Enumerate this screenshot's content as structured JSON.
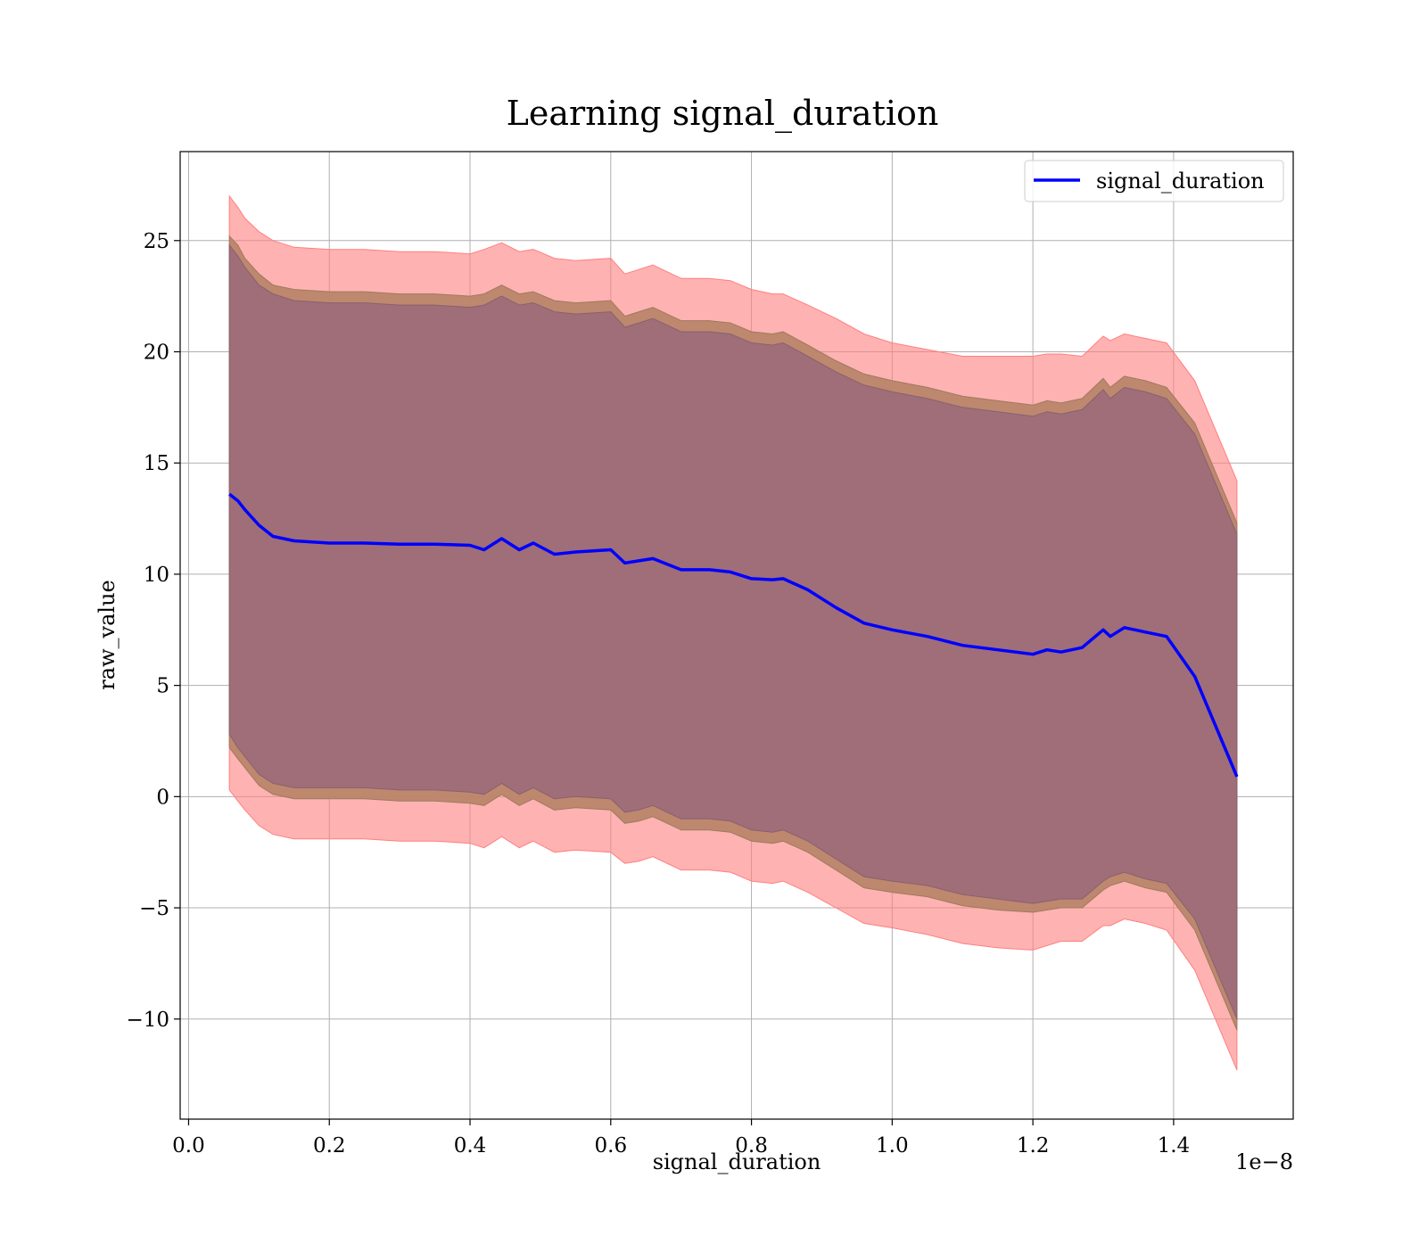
{
  "chart_data": {
    "type": "line",
    "title": "Learning signal_duration",
    "xlabel": "signal_duration",
    "ylabel": "raw_value",
    "x_offset_label": "1e−8",
    "xlim": [
      -0.012,
      1.57
    ],
    "ylim": [
      -14.5,
      29
    ],
    "x_ticks": [
      0.0,
      0.2,
      0.4,
      0.6,
      0.8,
      1.0,
      1.2,
      1.4
    ],
    "x_tick_labels": [
      "0.0",
      "0.2",
      "0.4",
      "0.6",
      "0.8",
      "1.0",
      "1.2",
      "1.4"
    ],
    "y_ticks": [
      -10,
      -5,
      0,
      5,
      10,
      15,
      20,
      25
    ],
    "y_tick_labels": [
      "−10",
      "−5",
      "0",
      "5",
      "10",
      "15",
      "20",
      "25"
    ],
    "grid": true,
    "legend_position": "top-right",
    "colors": {
      "line": "#0000ff",
      "band_outer": "#ff7f7f",
      "band_middle": "#b9866a",
      "band_inner": "#9f6e78",
      "grid": "#b0b0b0"
    },
    "series": [
      {
        "name": "signal_duration",
        "x": [
          0.058,
          0.07,
          0.08,
          0.1,
          0.12,
          0.15,
          0.2,
          0.25,
          0.3,
          0.35,
          0.4,
          0.42,
          0.445,
          0.47,
          0.49,
          0.52,
          0.55,
          0.6,
          0.62,
          0.64,
          0.66,
          0.7,
          0.74,
          0.77,
          0.8,
          0.83,
          0.845,
          0.88,
          0.92,
          0.96,
          1.0,
          1.05,
          1.1,
          1.15,
          1.2,
          1.22,
          1.24,
          1.27,
          1.3,
          1.31,
          1.33,
          1.36,
          1.39,
          1.43,
          1.49
        ],
        "y": [
          13.6,
          13.3,
          12.9,
          12.2,
          11.7,
          11.5,
          11.4,
          11.4,
          11.35,
          11.35,
          11.3,
          11.1,
          11.6,
          11.1,
          11.4,
          10.9,
          11.0,
          11.1,
          10.5,
          10.6,
          10.7,
          10.2,
          10.2,
          10.1,
          9.8,
          9.75,
          9.8,
          9.3,
          8.5,
          7.8,
          7.5,
          7.2,
          6.8,
          6.6,
          6.4,
          6.6,
          6.5,
          6.7,
          7.5,
          7.2,
          7.6,
          7.4,
          7.2,
          5.4,
          0.9
        ],
        "band_outer_upper": [
          27.0,
          26.5,
          26.0,
          25.4,
          25.0,
          24.7,
          24.6,
          24.6,
          24.5,
          24.5,
          24.4,
          24.6,
          24.9,
          24.5,
          24.6,
          24.2,
          24.1,
          24.2,
          23.5,
          23.7,
          23.9,
          23.3,
          23.3,
          23.2,
          22.8,
          22.6,
          22.6,
          22.1,
          21.5,
          20.8,
          20.4,
          20.1,
          19.8,
          19.8,
          19.8,
          19.9,
          19.9,
          19.8,
          20.7,
          20.5,
          20.8,
          20.6,
          20.4,
          18.7,
          14.2
        ],
        "band_middle_upper": [
          25.2,
          24.8,
          24.2,
          23.5,
          23.0,
          22.8,
          22.7,
          22.7,
          22.6,
          22.6,
          22.5,
          22.6,
          23.0,
          22.6,
          22.7,
          22.3,
          22.2,
          22.3,
          21.6,
          21.8,
          22.0,
          21.4,
          21.4,
          21.3,
          20.9,
          20.8,
          20.9,
          20.3,
          19.6,
          19.0,
          18.7,
          18.4,
          18.0,
          17.8,
          17.6,
          17.8,
          17.7,
          17.9,
          18.8,
          18.4,
          18.9,
          18.7,
          18.4,
          16.8,
          12.3
        ],
        "band_inner_upper": [
          24.8,
          24.3,
          23.8,
          23.0,
          22.6,
          22.3,
          22.2,
          22.2,
          22.1,
          22.1,
          22.0,
          22.1,
          22.5,
          22.1,
          22.2,
          21.8,
          21.7,
          21.8,
          21.1,
          21.3,
          21.5,
          20.9,
          20.9,
          20.8,
          20.4,
          20.3,
          20.4,
          19.8,
          19.1,
          18.5,
          18.2,
          17.9,
          17.5,
          17.3,
          17.1,
          17.3,
          17.2,
          17.4,
          18.3,
          17.9,
          18.4,
          18.2,
          17.9,
          16.3,
          11.8
        ],
        "band_inner_lower": [
          2.8,
          2.2,
          1.8,
          1.0,
          0.6,
          0.4,
          0.4,
          0.4,
          0.3,
          0.3,
          0.2,
          0.1,
          0.6,
          0.1,
          0.4,
          -0.1,
          0.0,
          -0.1,
          -0.7,
          -0.6,
          -0.4,
          -1.0,
          -1.0,
          -1.1,
          -1.5,
          -1.6,
          -1.5,
          -2.0,
          -2.8,
          -3.6,
          -3.8,
          -4.0,
          -4.4,
          -4.6,
          -4.8,
          -4.7,
          -4.6,
          -4.6,
          -3.8,
          -3.6,
          -3.4,
          -3.7,
          -3.9,
          -5.5,
          -10.0
        ],
        "band_middle_lower": [
          2.2,
          1.7,
          1.3,
          0.5,
          0.1,
          -0.1,
          -0.1,
          -0.1,
          -0.2,
          -0.2,
          -0.3,
          -0.4,
          0.1,
          -0.4,
          -0.1,
          -0.6,
          -0.5,
          -0.6,
          -1.2,
          -1.1,
          -0.9,
          -1.5,
          -1.5,
          -1.6,
          -2.0,
          -2.1,
          -2.0,
          -2.5,
          -3.3,
          -4.1,
          -4.3,
          -4.5,
          -4.9,
          -5.1,
          -5.2,
          -5.1,
          -5.0,
          -5.0,
          -4.2,
          -4.0,
          -3.8,
          -4.1,
          -4.3,
          -6.0,
          -10.5
        ],
        "band_outer_lower": [
          0.3,
          -0.2,
          -0.6,
          -1.3,
          -1.7,
          -1.9,
          -1.9,
          -1.9,
          -2.0,
          -2.0,
          -2.1,
          -2.3,
          -1.8,
          -2.3,
          -2.0,
          -2.5,
          -2.4,
          -2.5,
          -3.0,
          -2.9,
          -2.7,
          -3.3,
          -3.3,
          -3.4,
          -3.8,
          -3.9,
          -3.8,
          -4.3,
          -5.0,
          -5.7,
          -5.9,
          -6.2,
          -6.6,
          -6.8,
          -6.9,
          -6.7,
          -6.5,
          -6.5,
          -5.8,
          -5.8,
          -5.5,
          -5.7,
          -6.0,
          -7.8,
          -12.3
        ]
      }
    ]
  }
}
